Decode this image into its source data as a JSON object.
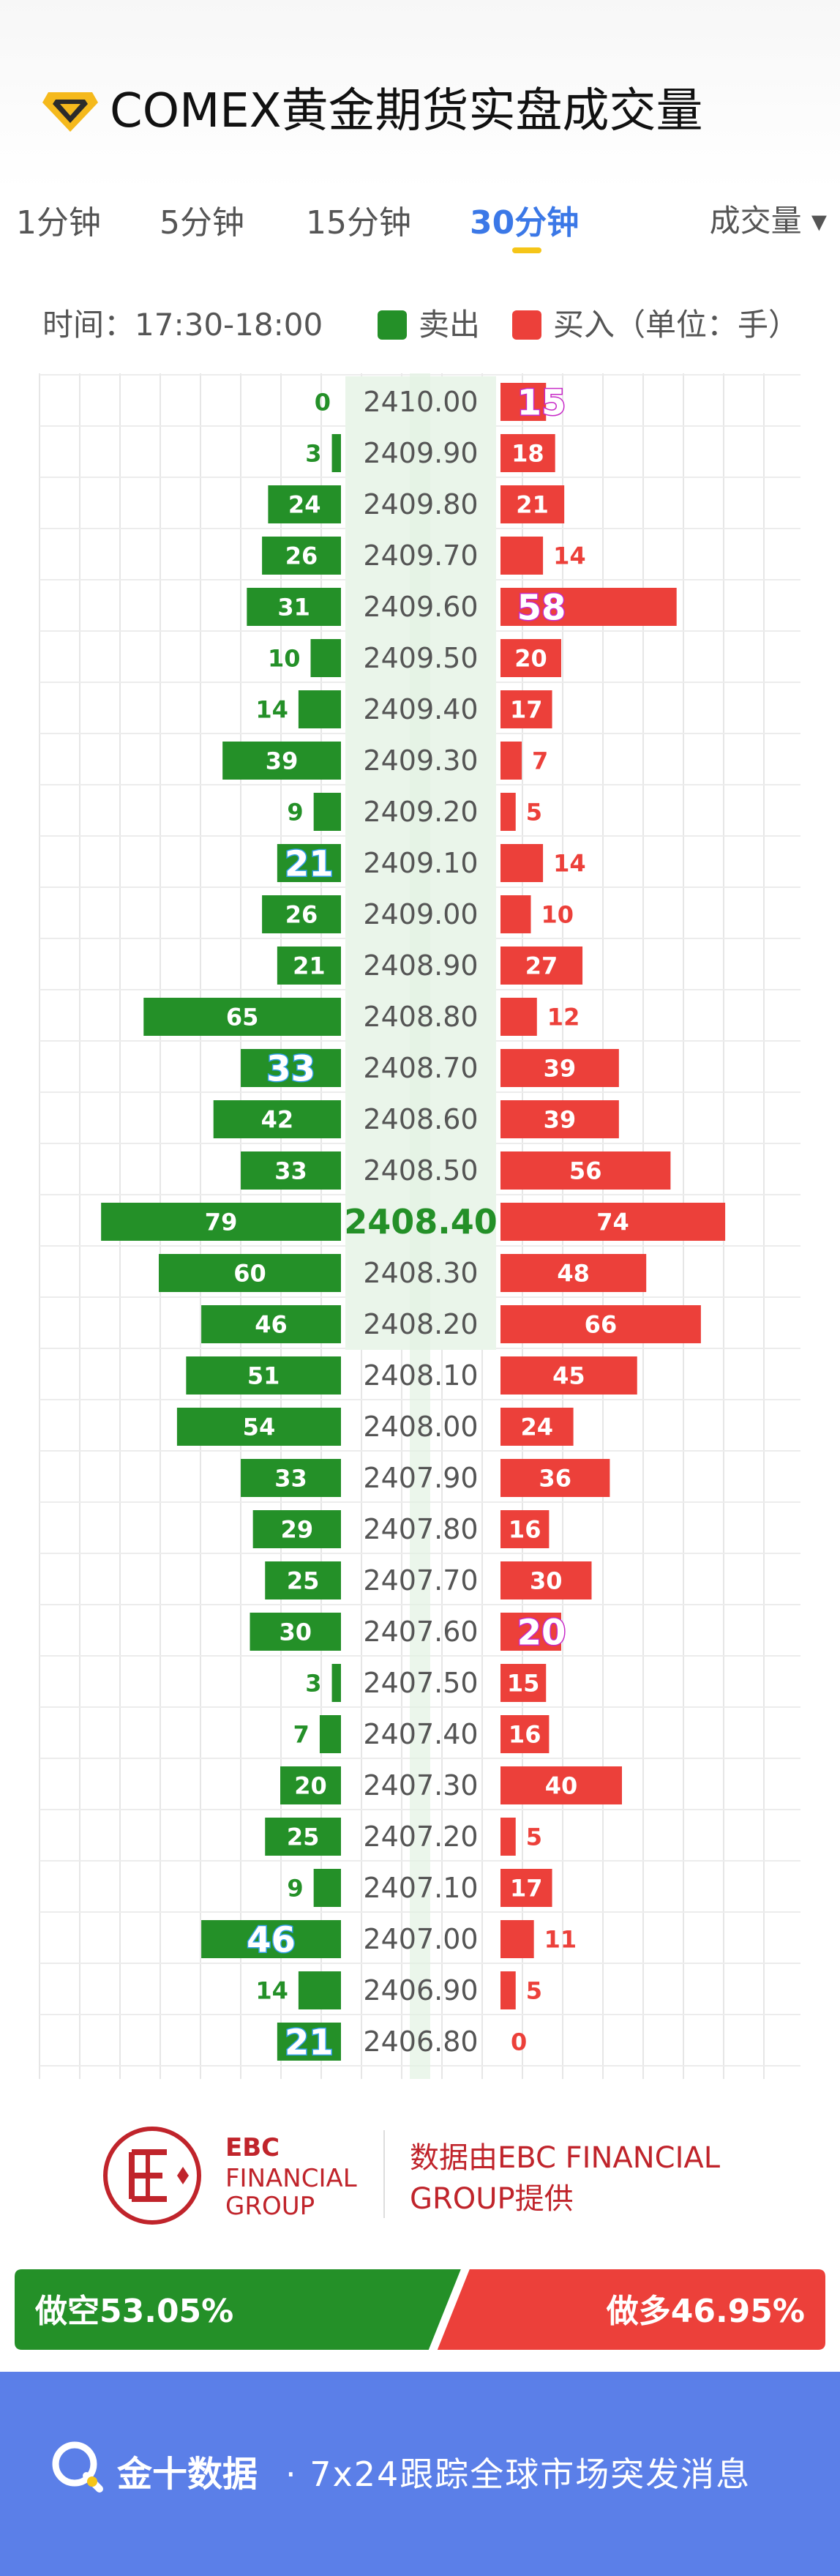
{
  "header": {
    "title": "COMEX黄金期货实盘成交量"
  },
  "tabs": [
    {
      "label": "1分钟",
      "active": false
    },
    {
      "label": "5分钟",
      "active": false
    },
    {
      "label": "15分钟",
      "active": false
    },
    {
      "label": "30分钟",
      "active": true
    }
  ],
  "dropdown": {
    "label": "成交量 ▾"
  },
  "legend": {
    "time": "时间：17:30-18:00",
    "sell": "卖出",
    "buy": "买入（单位：手）"
  },
  "colors": {
    "sell": "#249028",
    "buy": "#ec403a",
    "highlight_buy": "#c729c7",
    "highlight_sell": "#2e9de6",
    "band": "#eaf5ea",
    "current_price": "#249028"
  },
  "chart_data": {
    "type": "bar",
    "orientation": "horizontal-diverging",
    "current_price": "2408.40",
    "categories": [
      "2410.00",
      "2409.90",
      "2409.80",
      "2409.70",
      "2409.60",
      "2409.50",
      "2409.40",
      "2409.30",
      "2409.20",
      "2409.10",
      "2409.00",
      "2408.90",
      "2408.80",
      "2408.70",
      "2408.60",
      "2408.50",
      "2408.40",
      "2408.30",
      "2408.20",
      "2408.10",
      "2408.00",
      "2407.90",
      "2407.80",
      "2407.70",
      "2407.60",
      "2407.50",
      "2407.40",
      "2407.30",
      "2407.20",
      "2407.10",
      "2407.00",
      "2406.90",
      "2406.80"
    ],
    "series": [
      {
        "name": "卖出",
        "values": [
          0,
          3,
          24,
          26,
          31,
          10,
          14,
          39,
          9,
          21,
          26,
          21,
          65,
          33,
          42,
          33,
          79,
          60,
          46,
          51,
          54,
          33,
          29,
          25,
          30,
          3,
          7,
          20,
          25,
          9,
          46,
          14,
          21
        ]
      },
      {
        "name": "买入",
        "values": [
          15,
          18,
          21,
          14,
          58,
          20,
          17,
          7,
          5,
          14,
          10,
          27,
          12,
          39,
          39,
          56,
          74,
          48,
          66,
          45,
          24,
          36,
          16,
          30,
          20,
          15,
          16,
          40,
          5,
          17,
          11,
          5,
          0
        ]
      }
    ],
    "highlight_sell_rows": [
      "2409.10",
      "2408.70",
      "2407.00",
      "2406.80"
    ],
    "highlight_buy_rows": [
      "2410.00",
      "2409.60",
      "2407.60"
    ],
    "shaded_rows_from": "2410.00",
    "shaded_rows_to": "2408.20"
  },
  "brand": {
    "logo_line1": "EBC",
    "logo_line2": "FINANCIAL",
    "logo_line3": "GROUP",
    "source_line1": "数据由EBC FINANCIAL",
    "source_line2": "GROUP提供"
  },
  "ratio": {
    "short_label": "做空53.05%",
    "long_label": "做多46.95%",
    "short_pct": 53.05,
    "long_pct": 46.95
  },
  "footer": {
    "brand": "金十数据",
    "tagline": "· 7x24跟踪全球市场突发消息"
  }
}
